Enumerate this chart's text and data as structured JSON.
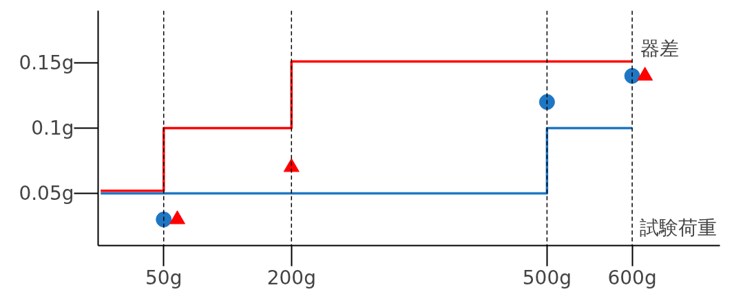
{
  "chart_data": {
    "type": "step",
    "xlabel": "試験荷重",
    "ylabel": "器差",
    "xlim": [
      -27,
      703
    ],
    "ylim": [
      0.01,
      0.19
    ],
    "xticks": [
      {
        "value": 50,
        "label": "50g"
      },
      {
        "value": 200,
        "label": "200g"
      },
      {
        "value": 500,
        "label": "500g"
      },
      {
        "value": 600,
        "label": "600g"
      }
    ],
    "yticks": [
      {
        "value": 0.05,
        "label": "0.05g"
      },
      {
        "value": 0.1,
        "label": "0.1g"
      },
      {
        "value": 0.15,
        "label": "0.15g"
      }
    ],
    "series": [
      {
        "color": "#ff0000",
        "x": [
          -24,
          50,
          200,
          600
        ],
        "values": [
          0.052,
          0.1,
          0.151,
          0.151
        ]
      },
      {
        "color": "#1f77c4",
        "x": [
          -24,
          500,
          600
        ],
        "values": [
          0.05,
          0.1,
          0.1
        ]
      },
      {
        "type": "scatter",
        "marker": "circle",
        "color": "#1f77c4",
        "x": [
          50,
          500,
          600
        ],
        "values": [
          0.03,
          0.12,
          0.14
        ]
      },
      {
        "type": "scatter",
        "marker": "triangle",
        "color": "#ff0000",
        "x": [
          66,
          200,
          615
        ],
        "values": [
          0.03,
          0.07,
          0.14
        ]
      }
    ],
    "ref_lines": [
      {
        "axis": "x",
        "value": 50,
        "label": null,
        "line_style": "dashed",
        "color": "#000000"
      },
      {
        "axis": "x",
        "value": 200,
        "label": null,
        "line_style": "dashed",
        "color": "#000000"
      },
      {
        "axis": "x",
        "value": 500,
        "label": null,
        "line_style": "dashed",
        "color": "#000000"
      },
      {
        "axis": "x",
        "value": 600,
        "label": null,
        "line_style": "dashed",
        "color": "#000000"
      }
    ],
    "grid": false
  }
}
